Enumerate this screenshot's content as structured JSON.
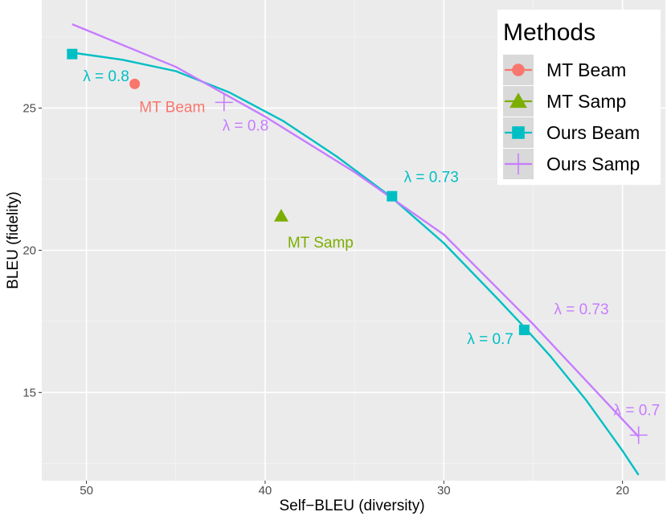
{
  "chart_data": {
    "type": "scatter",
    "title": "",
    "xlabel": "Self−BLEU (diversity)",
    "ylabel": "BLEU (fidelity)",
    "x_reversed": true,
    "xlim": [
      52.5,
      17.6
    ],
    "ylim": [
      11.9,
      28.8
    ],
    "x_ticks": [
      50,
      40,
      30,
      20
    ],
    "x_tick_labels": [
      "50",
      "40",
      "30",
      "20"
    ],
    "y_ticks": [
      15,
      20,
      25
    ],
    "y_tick_labels": [
      "15",
      "20",
      "25"
    ],
    "grid": true,
    "legend_position": "top-right",
    "legend_title": "Methods",
    "colors": {
      "mt_beam": "#F8766D",
      "mt_samp": "#7CAE00",
      "ours_beam": "#00BFC4",
      "ours_samp": "#C77CFF"
    },
    "series": [
      {
        "name": "MT Beam",
        "color_key": "mt_beam",
        "marker": "circle",
        "x": [
          47.3
        ],
        "y": [
          25.85
        ]
      },
      {
        "name": "MT Samp",
        "color_key": "mt_samp",
        "marker": "triangle",
        "x": [
          39.1
        ],
        "y": [
          21.2
        ]
      },
      {
        "name": "Ours Beam",
        "color_key": "ours_beam",
        "marker": "square",
        "x": [
          50.8,
          32.9,
          25.5
        ],
        "y": [
          26.9,
          21.9,
          17.2
        ]
      },
      {
        "name": "Ours Samp",
        "color_key": "ours_samp",
        "marker": "plus",
        "x": [
          42.3,
          19.1
        ],
        "y": [
          25.2,
          13.5
        ]
      }
    ],
    "fit_lines": [
      {
        "name": "Ours Beam",
        "color_key": "ours_beam",
        "x": [
          50.8,
          48,
          45,
          42,
          39,
          36,
          33,
          30,
          27,
          25.5,
          24,
          22,
          20,
          19.1
        ],
        "y": [
          26.95,
          26.7,
          26.3,
          25.55,
          24.55,
          23.3,
          21.9,
          20.25,
          18.3,
          17.3,
          16.25,
          14.7,
          12.95,
          12.1
        ]
      },
      {
        "name": "Ours Samp",
        "color_key": "ours_samp",
        "x": [
          50.8,
          45,
          40,
          35,
          30,
          25,
          19.1
        ],
        "y": [
          27.95,
          26.45,
          24.7,
          22.75,
          20.55,
          17.4,
          13.45
        ]
      }
    ],
    "annotations": [
      {
        "text": "λ = 0.8",
        "color_key": "ours_beam",
        "x": 48.9,
        "y": 26.15
      },
      {
        "text": "MT Beam",
        "color_key": "mt_beam",
        "x": 45.2,
        "y": 25.05
      },
      {
        "text": "λ = 0.8",
        "color_key": "ours_samp",
        "x": 41.1,
        "y": 24.4
      },
      {
        "text": "λ = 0.73",
        "color_key": "ours_beam",
        "x": 30.7,
        "y": 22.6
      },
      {
        "text": "MT Samp",
        "color_key": "mt_samp",
        "x": 36.9,
        "y": 20.3
      },
      {
        "text": "λ = 0.73",
        "color_key": "ours_samp",
        "x": 22.3,
        "y": 17.95
      },
      {
        "text": "λ = 0.7",
        "color_key": "ours_beam",
        "x": 27.4,
        "y": 16.9
      },
      {
        "text": "λ = 0.7",
        "color_key": "ours_samp",
        "x": 19.2,
        "y": 14.4
      }
    ]
  }
}
